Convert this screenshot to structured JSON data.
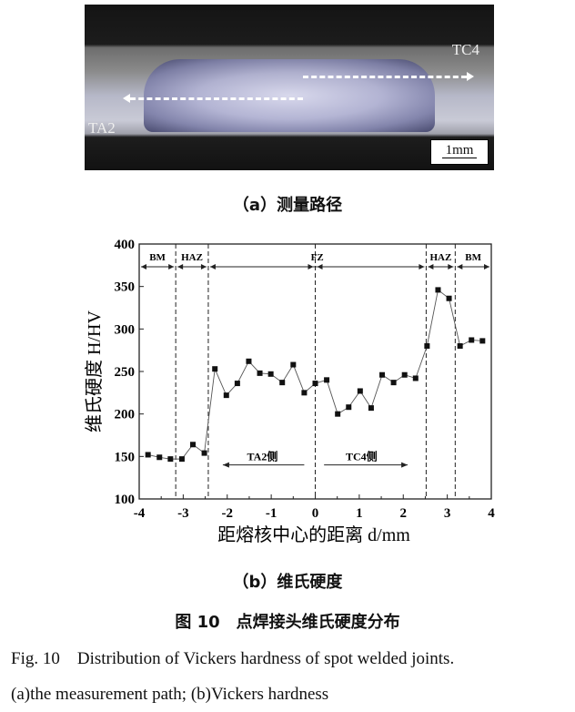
{
  "figure_a": {
    "label_tc4": "TC4",
    "label_ta2": "TA2",
    "scale_bar": "1mm",
    "caption": "（a）测量路径"
  },
  "chart_data": {
    "type": "line",
    "xlabel": "距熔核中心的距离 d/mm",
    "ylabel": "维氏硬度 H/HV",
    "xlim": [
      -4,
      4
    ],
    "ylim": [
      100,
      400
    ],
    "xticks": [
      "-4",
      "-3",
      "-2",
      "-1",
      "0",
      "1",
      "2",
      "3",
      "4"
    ],
    "yticks": [
      "100",
      "150",
      "200",
      "250",
      "300",
      "350",
      "400"
    ],
    "grid": false,
    "marker": "square",
    "x": [
      -3.8,
      -3.54,
      -3.29,
      -3.03,
      -2.78,
      -2.52,
      -2.28,
      -2.02,
      -1.77,
      -1.51,
      -1.26,
      -1.01,
      -0.75,
      -0.5,
      -0.25,
      0,
      0.26,
      0.51,
      0.76,
      1.02,
      1.27,
      1.52,
      1.78,
      2.03,
      2.28,
      2.54,
      2.79,
      3.04,
      3.29,
      3.55,
      3.8
    ],
    "y": [
      152,
      149,
      147,
      147,
      164,
      154,
      253,
      222,
      236,
      262,
      248,
      247,
      237,
      258,
      225,
      236,
      240,
      200,
      208,
      227,
      207,
      246,
      237,
      246,
      242,
      280,
      346,
      336,
      280,
      287,
      286
    ],
    "zone_boundaries": [
      -3.17,
      -2.43,
      0,
      2.52,
      3.18
    ],
    "zones": [
      "BM",
      "HAZ",
      "FZ",
      "HAZ",
      "BM"
    ],
    "side_labels": [
      "TA2侧",
      "TC4侧"
    ]
  },
  "figure_b": {
    "caption": "（b）维氏硬度"
  },
  "figure_caption_cn": "图 10　点焊接头维氏硬度分布",
  "figure_caption_en_1": "Fig. 10　Distribution of Vickers hardness of spot welded joints.",
  "figure_caption_en_2": "(a)the measurement path; (b)Vickers hardness"
}
